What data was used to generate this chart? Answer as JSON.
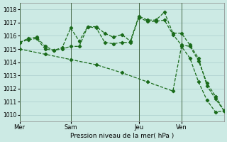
{
  "bg_color": "#cceae4",
  "grid_color": "#aacccc",
  "line_color": "#1a6b1a",
  "xlabel": "Pression niveau de la mer( hPa )",
  "ylim": [
    1009.5,
    1018.5
  ],
  "yticks": [
    1010,
    1011,
    1012,
    1013,
    1014,
    1015,
    1016,
    1017,
    1018
  ],
  "xtick_labels": [
    "Mer",
    "Sam",
    "Jeu",
    "Ven"
  ],
  "xtick_positions": [
    0,
    18,
    42,
    57
  ],
  "vline_positions": [
    0,
    18,
    42,
    57
  ],
  "xlim": [
    0,
    72
  ],
  "series1": {
    "x": [
      0,
      3,
      6,
      9,
      12,
      15,
      18,
      21,
      24,
      27,
      30,
      33,
      36,
      39,
      42,
      45,
      48,
      51,
      54,
      57,
      60,
      63,
      66,
      69,
      72
    ],
    "y": [
      1015.5,
      1015.8,
      1015.9,
      1015.2,
      1014.9,
      1015.1,
      1016.6,
      1015.6,
      1016.7,
      1016.7,
      1016.2,
      1015.9,
      1016.1,
      1015.6,
      1017.5,
      1017.2,
      1017.2,
      1017.8,
      1016.2,
      1016.2,
      1015.3,
      1014.3,
      1012.2,
      1011.2,
      1010.3
    ]
  },
  "series2": {
    "x": [
      0,
      3,
      6,
      9,
      12,
      15,
      18,
      21,
      24,
      27,
      30,
      33,
      36,
      39,
      42,
      45,
      48,
      51,
      54,
      57,
      60,
      63,
      66,
      69,
      72
    ],
    "y": [
      1015.5,
      1015.7,
      1015.8,
      1015.0,
      1014.9,
      1015.0,
      1015.2,
      1015.2,
      1016.7,
      1016.6,
      1015.5,
      1015.4,
      1015.5,
      1015.5,
      1017.4,
      1017.1,
      1017.1,
      1017.2,
      1016.1,
      1015.3,
      1015.2,
      1014.1,
      1012.4,
      1011.4,
      1010.3
    ]
  },
  "series3": {
    "x": [
      0,
      9,
      18,
      27,
      36,
      45,
      54,
      57,
      60,
      63,
      66,
      69,
      72
    ],
    "y": [
      1015.0,
      1014.6,
      1014.2,
      1013.8,
      1013.2,
      1012.5,
      1011.8,
      1015.2,
      1014.3,
      1012.5,
      1011.1,
      1010.2,
      1010.3
    ]
  }
}
